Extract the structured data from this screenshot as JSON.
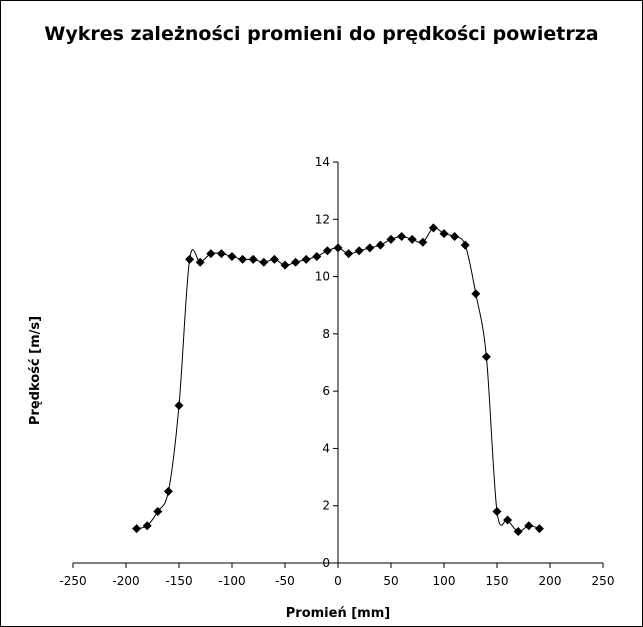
{
  "chart_data": {
    "type": "scatter",
    "title": "Wykres zależności promieni do prędkości powietrza",
    "xlabel": "Promień [mm]",
    "ylabel": "Prędkość  [m/s]",
    "xlim": [
      -250,
      250
    ],
    "ylim": [
      0,
      14
    ],
    "xticks": [
      -250,
      -200,
      -150,
      -100,
      -50,
      0,
      50,
      100,
      150,
      200,
      250
    ],
    "yticks": [
      0,
      2,
      4,
      6,
      8,
      10,
      12,
      14
    ],
    "grid": false,
    "legend": "none",
    "marker": "diamond",
    "line": "smooth",
    "color": "#000000",
    "points": [
      {
        "x": -190,
        "y": 1.2
      },
      {
        "x": -180,
        "y": 1.3
      },
      {
        "x": -170,
        "y": 1.8
      },
      {
        "x": -160,
        "y": 2.5
      },
      {
        "x": -150,
        "y": 5.5
      },
      {
        "x": -140,
        "y": 10.6
      },
      {
        "x": -130,
        "y": 10.5
      },
      {
        "x": -120,
        "y": 10.8
      },
      {
        "x": -110,
        "y": 10.8
      },
      {
        "x": -100,
        "y": 10.7
      },
      {
        "x": -90,
        "y": 10.6
      },
      {
        "x": -80,
        "y": 10.6
      },
      {
        "x": -70,
        "y": 10.5
      },
      {
        "x": -60,
        "y": 10.6
      },
      {
        "x": -50,
        "y": 10.4
      },
      {
        "x": -40,
        "y": 10.5
      },
      {
        "x": -30,
        "y": 10.6
      },
      {
        "x": -20,
        "y": 10.7
      },
      {
        "x": -10,
        "y": 10.9
      },
      {
        "x": 0,
        "y": 11.0
      },
      {
        "x": 10,
        "y": 10.8
      },
      {
        "x": 20,
        "y": 10.9
      },
      {
        "x": 30,
        "y": 11.0
      },
      {
        "x": 40,
        "y": 11.1
      },
      {
        "x": 50,
        "y": 11.3
      },
      {
        "x": 60,
        "y": 11.4
      },
      {
        "x": 70,
        "y": 11.3
      },
      {
        "x": 80,
        "y": 11.2
      },
      {
        "x": 90,
        "y": 11.7
      },
      {
        "x": 100,
        "y": 11.5
      },
      {
        "x": 110,
        "y": 11.4
      },
      {
        "x": 120,
        "y": 11.1
      },
      {
        "x": 130,
        "y": 9.4
      },
      {
        "x": 140,
        "y": 7.2
      },
      {
        "x": 150,
        "y": 1.8
      },
      {
        "x": 160,
        "y": 1.5
      },
      {
        "x": 170,
        "y": 1.1
      },
      {
        "x": 180,
        "y": 1.3
      },
      {
        "x": 190,
        "y": 1.2
      }
    ]
  }
}
